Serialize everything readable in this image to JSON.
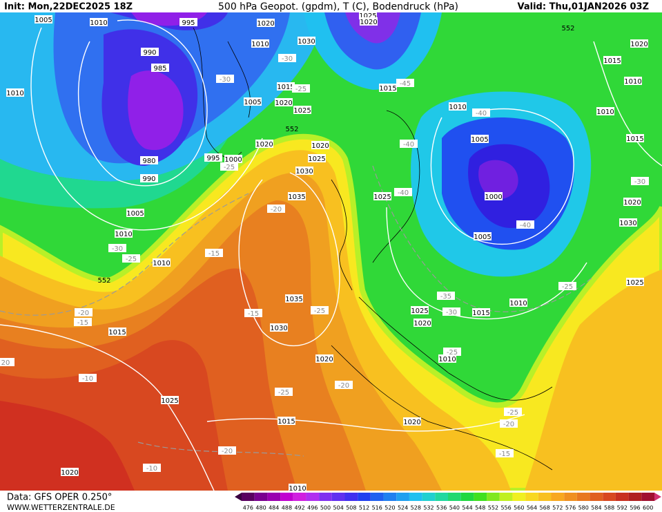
{
  "header": {
    "init": "Init: Mon,22DEC2025 18Z",
    "title": "500 hPa Geopot. (gpdm), T (C), Bodendruck (hPa)",
    "valid": "Valid: Thu,01JAN2026 03Z"
  },
  "footer": {
    "data": "Data: GFS OPER 0.250°",
    "site": "WWW.WETTERZENTRALE.DE"
  },
  "pressure_labels": [
    1005,
    1010,
    995,
    1020,
    1010,
    1030,
    1025,
    1020,
    990,
    985,
    1010,
    1015,
    1020,
    1005,
    1025,
    980,
    995,
    1000,
    990,
    1020,
    1020,
    1025,
    1030,
    1035,
    1005,
    1010,
    1010,
    1035,
    1030,
    1015,
    1025,
    1010,
    1005,
    1000,
    1005,
    1015,
    1020,
    1015,
    1010,
    1010,
    1015,
    1020,
    1030,
    1025,
    1010,
    1015,
    1025,
    1020,
    1010,
    1020,
    1025,
    1015,
    1020,
    1020,
    1010
  ],
  "temperature_labels": [
    -30,
    -30,
    -25,
    -45,
    -40,
    -40,
    -40,
    -40,
    -25,
    -20,
    -15,
    -30,
    -25,
    -20,
    -15,
    -15,
    -25,
    -35,
    -30,
    -25,
    -30,
    -25,
    -10,
    -20,
    -25,
    -20,
    -10,
    -25,
    -20,
    -15,
    20
  ],
  "geopotential_labels": [
    552,
    552,
    552
  ],
  "colorbar": {
    "values": [
      476,
      480,
      484,
      488,
      492,
      496,
      500,
      504,
      508,
      512,
      516,
      520,
      524,
      528,
      532,
      536,
      540,
      544,
      548,
      552,
      556,
      560,
      564,
      568,
      572,
      576,
      580,
      584,
      588,
      592,
      596,
      600
    ],
    "colors": [
      "#5a0060",
      "#7a0090",
      "#9a00b0",
      "#c000d0",
      "#d020e0",
      "#b030f0",
      "#8030f0",
      "#6030f0",
      "#4030f0",
      "#2040f0",
      "#2060f0",
      "#2080f0",
      "#20a0f0",
      "#20c0f0",
      "#20d0d0",
      "#20d8a0",
      "#20d870",
      "#20d840",
      "#40e020",
      "#80e820",
      "#c0f020",
      "#f0f020",
      "#f8d820",
      "#f8c020",
      "#f8a820",
      "#f09020",
      "#e87820",
      "#e06020",
      "#d84820",
      "#c83020",
      "#b02020",
      "#a01030"
    ]
  }
}
